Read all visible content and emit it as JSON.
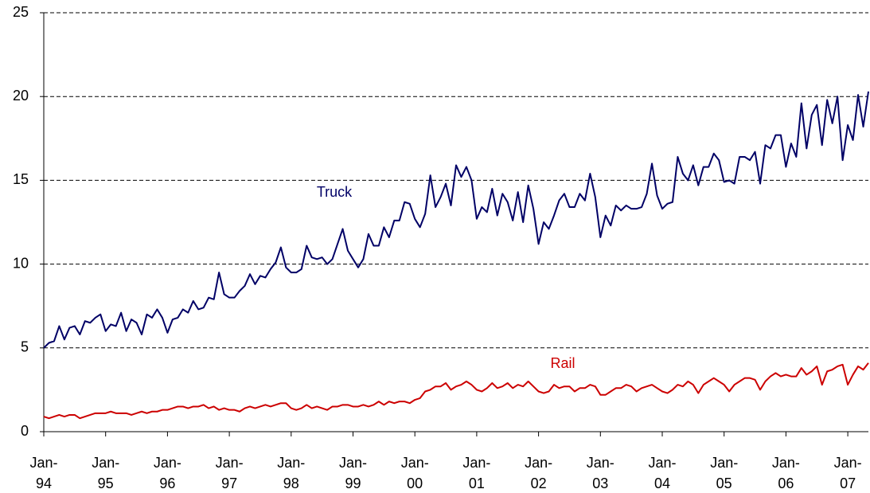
{
  "chart_data": {
    "type": "line",
    "categories": [
      "Jan-94",
      null,
      null,
      null,
      null,
      null,
      null,
      null,
      null,
      null,
      null,
      null,
      "Jan-95",
      null,
      null,
      null,
      null,
      null,
      null,
      null,
      null,
      null,
      null,
      null,
      "Jan-96",
      null,
      null,
      null,
      null,
      null,
      null,
      null,
      null,
      null,
      null,
      null,
      "Jan-97",
      null,
      null,
      null,
      null,
      null,
      null,
      null,
      null,
      null,
      null,
      null,
      "Jan-98",
      null,
      null,
      null,
      null,
      null,
      null,
      null,
      null,
      null,
      null,
      null,
      "Jan-99",
      null,
      null,
      null,
      null,
      null,
      null,
      null,
      null,
      null,
      null,
      null,
      "Jan-00",
      null,
      null,
      null,
      null,
      null,
      null,
      null,
      null,
      null,
      null,
      null,
      "Jan-01",
      null,
      null,
      null,
      null,
      null,
      null,
      null,
      null,
      null,
      null,
      null,
      "Jan-02",
      null,
      null,
      null,
      null,
      null,
      null,
      null,
      null,
      null,
      null,
      null,
      "Jan-03",
      null,
      null,
      null,
      null,
      null,
      null,
      null,
      null,
      null,
      null,
      null,
      "Jan-04",
      null,
      null,
      null,
      null,
      null,
      null,
      null,
      null,
      null,
      null,
      null,
      "Jan-05",
      null,
      null,
      null,
      null,
      null,
      null,
      null,
      null,
      null,
      null,
      null,
      "Jan-06",
      null,
      null,
      null,
      null,
      null,
      null,
      null,
      null,
      null,
      null,
      null,
      "Jan-07",
      null,
      null,
      null,
      null
    ],
    "series": [
      {
        "name": "Truck",
        "color": "#000066",
        "values": [
          5.0,
          5.3,
          5.4,
          6.3,
          5.5,
          6.2,
          6.3,
          5.8,
          6.6,
          6.5,
          6.8,
          7.0,
          6.0,
          6.4,
          6.3,
          7.1,
          6.0,
          6.7,
          6.5,
          5.8,
          7.0,
          6.8,
          7.3,
          6.8,
          5.9,
          6.7,
          6.8,
          7.3,
          7.1,
          7.8,
          7.3,
          7.4,
          8.0,
          7.9,
          9.5,
          8.2,
          8.0,
          8.0,
          8.4,
          8.7,
          9.4,
          8.8,
          9.3,
          9.2,
          9.7,
          10.1,
          11.0,
          9.8,
          9.5,
          9.5,
          9.7,
          11.1,
          10.4,
          10.3,
          10.4,
          10.0,
          10.3,
          11.2,
          12.1,
          10.8,
          10.3,
          9.8,
          10.3,
          11.8,
          11.1,
          11.1,
          12.2,
          11.6,
          12.6,
          12.6,
          13.7,
          13.6,
          12.7,
          12.2,
          13.0,
          15.3,
          13.4,
          14.0,
          14.8,
          13.5,
          15.9,
          15.2,
          15.8,
          15.0,
          12.7,
          13.4,
          13.1,
          14.5,
          12.9,
          14.2,
          13.7,
          12.6,
          14.3,
          12.5,
          14.7,
          13.3,
          11.2,
          12.5,
          12.1,
          12.9,
          13.8,
          14.2,
          13.4,
          13.4,
          14.2,
          13.8,
          15.4,
          14.0,
          11.6,
          12.9,
          12.3,
          13.5,
          13.2,
          13.5,
          13.3,
          13.3,
          13.4,
          14.2,
          16.0,
          14.1,
          13.3,
          13.6,
          13.7,
          16.4,
          15.4,
          15.0,
          15.9,
          14.7,
          15.8,
          15.8,
          16.6,
          16.2,
          14.9,
          15.0,
          14.8,
          16.4,
          16.4,
          16.2,
          16.7,
          14.8,
          17.1,
          16.9,
          17.7,
          17.7,
          15.8,
          17.2,
          16.4,
          19.6,
          16.9,
          18.9,
          19.5,
          17.1,
          19.8,
          18.4,
          20.0,
          16.2,
          18.3,
          17.4,
          20.1,
          18.2,
          20.3
        ]
      },
      {
        "name": "Rail",
        "color": "#cc0000",
        "values": [
          0.9,
          0.8,
          0.9,
          1.0,
          0.9,
          1.0,
          1.0,
          0.8,
          0.9,
          1.0,
          1.1,
          1.1,
          1.1,
          1.2,
          1.1,
          1.1,
          1.1,
          1.0,
          1.1,
          1.2,
          1.1,
          1.2,
          1.2,
          1.3,
          1.3,
          1.4,
          1.5,
          1.5,
          1.4,
          1.5,
          1.5,
          1.6,
          1.4,
          1.5,
          1.3,
          1.4,
          1.3,
          1.3,
          1.2,
          1.4,
          1.5,
          1.4,
          1.5,
          1.6,
          1.5,
          1.6,
          1.7,
          1.7,
          1.4,
          1.3,
          1.4,
          1.6,
          1.4,
          1.5,
          1.4,
          1.3,
          1.5,
          1.5,
          1.6,
          1.6,
          1.5,
          1.5,
          1.6,
          1.5,
          1.6,
          1.8,
          1.6,
          1.8,
          1.7,
          1.8,
          1.8,
          1.7,
          1.9,
          2.0,
          2.4,
          2.5,
          2.7,
          2.7,
          2.9,
          2.5,
          2.7,
          2.8,
          3.0,
          2.8,
          2.5,
          2.4,
          2.6,
          2.9,
          2.6,
          2.7,
          2.9,
          2.6,
          2.8,
          2.7,
          3.0,
          2.7,
          2.4,
          2.3,
          2.4,
          2.8,
          2.6,
          2.7,
          2.7,
          2.4,
          2.6,
          2.6,
          2.8,
          2.7,
          2.2,
          2.2,
          2.4,
          2.6,
          2.6,
          2.8,
          2.7,
          2.4,
          2.6,
          2.7,
          2.8,
          2.6,
          2.4,
          2.3,
          2.5,
          2.8,
          2.7,
          3.0,
          2.8,
          2.3,
          2.8,
          3.0,
          3.2,
          3.0,
          2.8,
          2.4,
          2.8,
          3.0,
          3.2,
          3.2,
          3.1,
          2.5,
          3.0,
          3.3,
          3.5,
          3.3,
          3.4,
          3.3,
          3.3,
          3.8,
          3.4,
          3.6,
          3.9,
          2.8,
          3.6,
          3.7,
          3.9,
          4.0,
          2.8,
          3.4,
          3.9,
          3.7,
          4.1
        ]
      }
    ],
    "ylim": [
      0,
      25
    ],
    "yticks": [
      0,
      5,
      10,
      15,
      20,
      25
    ],
    "grid": true
  }
}
